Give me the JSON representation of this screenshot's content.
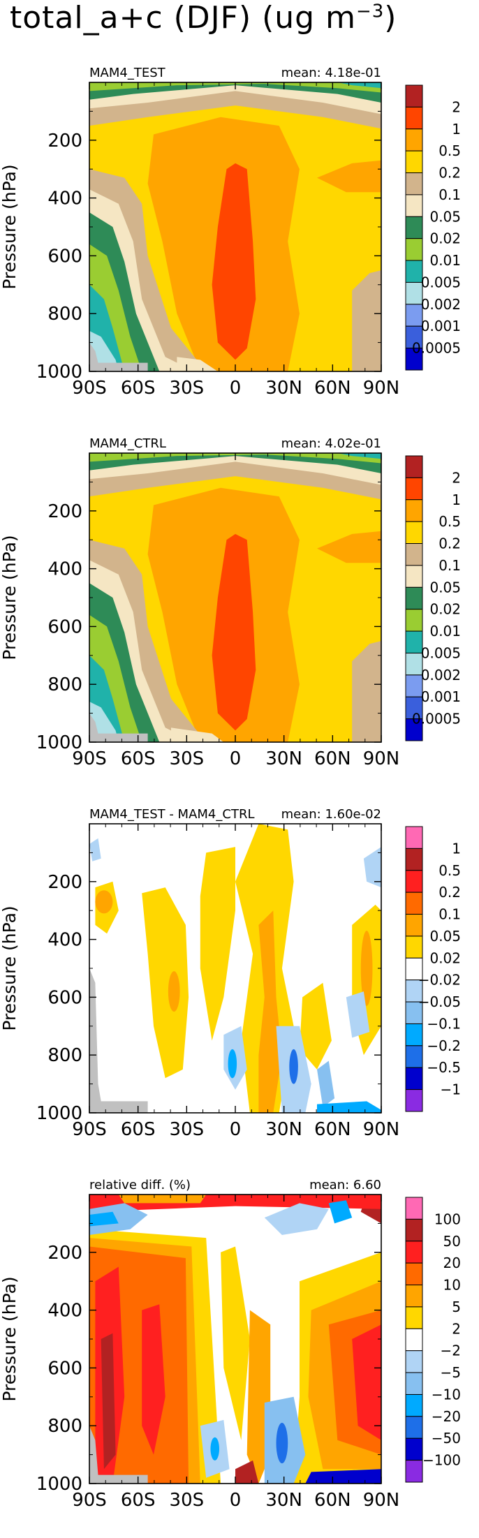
{
  "title": "total_a+c (DJF) (ug m",
  "title_sup": "−3",
  "title_close": ")",
  "chart_data": [
    {
      "type": "heatmap",
      "name": "MAM4_TEST",
      "mean_label": "mean: 4.18e-01",
      "ylabel": "Pressure (hPa)",
      "yticks": [
        "200",
        "400",
        "600",
        "800",
        "1000"
      ],
      "xticks": [
        "90S",
        "60S",
        "30S",
        "0",
        "30N",
        "60N",
        "90N"
      ],
      "ylim": [
        0,
        1000
      ],
      "xlim": [
        -90,
        90
      ],
      "levels": [
        "2",
        "1",
        "0.5",
        "0.2",
        "0.1",
        "0.05",
        "0.02",
        "0.01",
        "0.005",
        "0.002",
        "0.001",
        "0.0005"
      ],
      "colors": [
        "#b22222",
        "#ff4500",
        "#ffa500",
        "#ffd700",
        "#d2b48c",
        "#f5e6c3",
        "#2e8b57",
        "#9acd32",
        "#20b2aa",
        "#b0e0e6",
        "#7b9cf0",
        "#3a5fdc",
        "#0000cd"
      ]
    },
    {
      "type": "heatmap",
      "name": "MAM4_CTRL",
      "mean_label": "mean: 4.02e-01",
      "ylabel": "Pressure (hPa)",
      "yticks": [
        "200",
        "400",
        "600",
        "800",
        "1000"
      ],
      "xticks": [
        "90S",
        "60S",
        "30S",
        "0",
        "30N",
        "60N",
        "90N"
      ],
      "ylim": [
        0,
        1000
      ],
      "xlim": [
        -90,
        90
      ],
      "levels": [
        "2",
        "1",
        "0.5",
        "0.2",
        "0.1",
        "0.05",
        "0.02",
        "0.01",
        "0.005",
        "0.002",
        "0.001",
        "0.0005"
      ],
      "colors": [
        "#b22222",
        "#ff4500",
        "#ffa500",
        "#ffd700",
        "#d2b48c",
        "#f5e6c3",
        "#2e8b57",
        "#9acd32",
        "#20b2aa",
        "#b0e0e6",
        "#7b9cf0",
        "#3a5fdc",
        "#0000cd"
      ]
    },
    {
      "type": "heatmap",
      "name": "MAM4_TEST - MAM4_CTRL",
      "mean_label": "mean: 1.60e-02",
      "ylabel": "Pressure (hPa)",
      "yticks": [
        "200",
        "400",
        "600",
        "800",
        "1000"
      ],
      "xticks": [
        "90S",
        "60S",
        "30S",
        "0",
        "30N",
        "60N",
        "90N"
      ],
      "ylim": [
        0,
        1000
      ],
      "xlim": [
        -90,
        90
      ],
      "levels": [
        "1",
        "0.5",
        "0.2",
        "0.1",
        "0.05",
        "0.02",
        "−0.02",
        "−0.05",
        "−0.1",
        "−0.2",
        "−0.5",
        "−1"
      ],
      "colors": [
        "#ff69b4",
        "#b22222",
        "#ff2020",
        "#ff6a00",
        "#ffa500",
        "#ffd700",
        "#ffffff",
        "#b0d4f5",
        "#87c0f0",
        "#00aaff",
        "#1e6fe8",
        "#0000cd",
        "#8a2be2"
      ]
    },
    {
      "type": "heatmap",
      "name": "relative diff. (%)",
      "mean_label": "mean:   6.60",
      "ylabel": "Pressure (hPa)",
      "yticks": [
        "200",
        "400",
        "600",
        "800",
        "1000"
      ],
      "xticks": [
        "90S",
        "60S",
        "30S",
        "0",
        "30N",
        "60N",
        "90N"
      ],
      "ylim": [
        0,
        1000
      ],
      "xlim": [
        -90,
        90
      ],
      "levels": [
        "100",
        "50",
        "20",
        "10",
        "5",
        "2",
        "−2",
        "−5",
        "−10",
        "−20",
        "−50",
        "−100"
      ],
      "colors": [
        "#ff69b4",
        "#b22222",
        "#ff2020",
        "#ff6a00",
        "#ffa500",
        "#ffd700",
        "#ffffff",
        "#b0d4f5",
        "#87c0f0",
        "#00aaff",
        "#1e6fe8",
        "#0000cd",
        "#8a2be2"
      ]
    }
  ]
}
